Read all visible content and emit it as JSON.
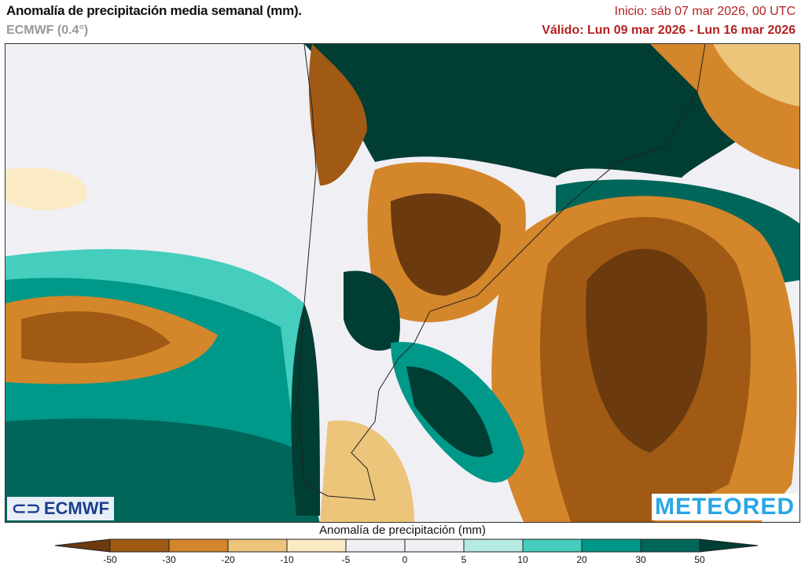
{
  "header": {
    "title": "Anomalía de precipitación media semanal (mm).",
    "model": "ECMWF (0.4°)",
    "inicio": "Inicio:  sáb 07 mar 2026, 00 UTC",
    "valido": "Válido: Lun 09 mar 2026 - Lun 16 mar 2026"
  },
  "logos": {
    "left": "ECMWF",
    "right": "METEORED"
  },
  "colorbar": {
    "title": "Anomalía de precipitación (mm)",
    "ticks": [
      "-50",
      "-30",
      "-20",
      "-10",
      "-5",
      "0",
      "5",
      "10",
      "20",
      "30",
      "50"
    ],
    "colors": [
      "#6b3a0e",
      "#a05a14",
      "#d4862a",
      "#ecc47a",
      "#fbebc4",
      "#f0eff4",
      "#f0eff4",
      "#b6ebe2",
      "#45cdbd",
      "#009888",
      "#00665a",
      "#003d33"
    ]
  }
}
